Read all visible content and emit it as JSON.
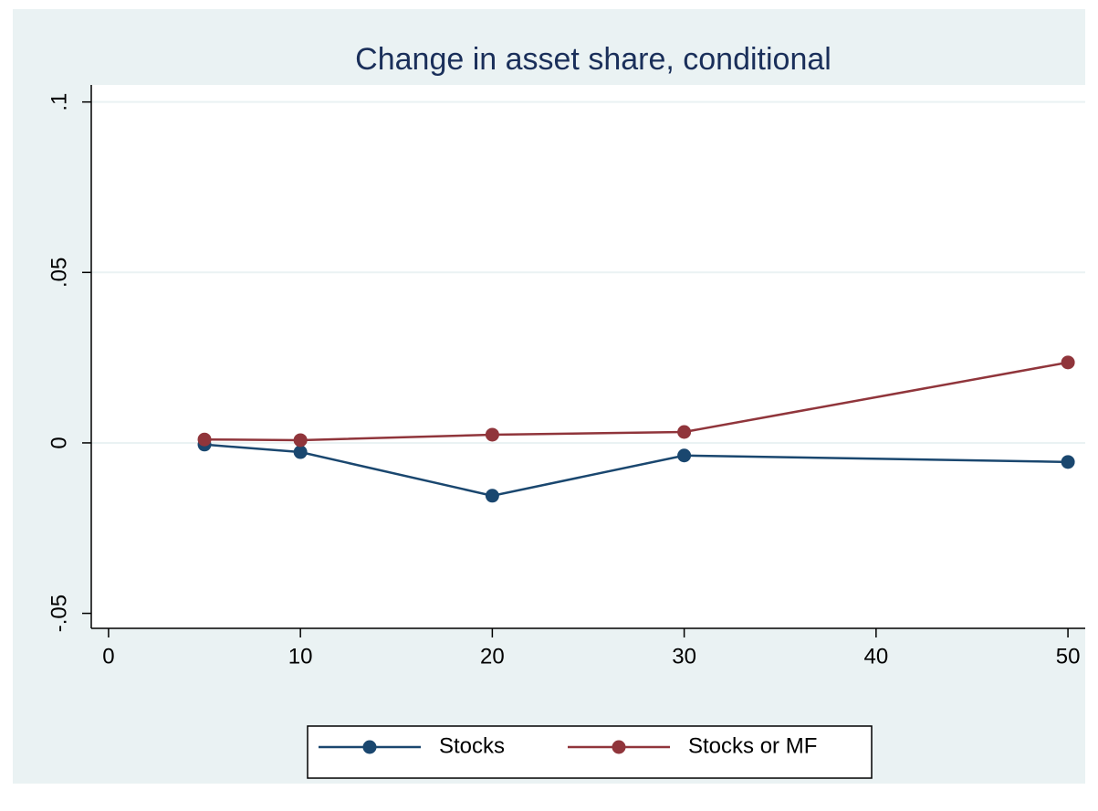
{
  "chart_data": {
    "type": "line",
    "title": "Change in asset share, conditional",
    "x": [
      5,
      10,
      20,
      30,
      50
    ],
    "series": [
      {
        "name": "Stocks",
        "color": "#1a476f",
        "values": [
          -0.0005,
          -0.0027,
          -0.0155,
          -0.0037,
          -0.0056
        ]
      },
      {
        "name": "Stocks or MF",
        "color": "#90353b",
        "values": [
          0.001,
          0.0008,
          0.0024,
          0.0032,
          0.0236
        ]
      }
    ],
    "xlim": [
      -0.9,
      50.9
    ],
    "xticks": [
      0,
      10,
      20,
      30,
      40,
      50
    ],
    "ylim": [
      -0.0544,
      0.105
    ],
    "yticks": [
      {
        "value": -0.05,
        "label": "-.05"
      },
      {
        "value": 0,
        "label": "0"
      },
      {
        "value": 0.05,
        "label": ".05"
      },
      {
        "value": 0.1,
        "label": ".1"
      }
    ],
    "grid": true,
    "legend": "bottom"
  }
}
